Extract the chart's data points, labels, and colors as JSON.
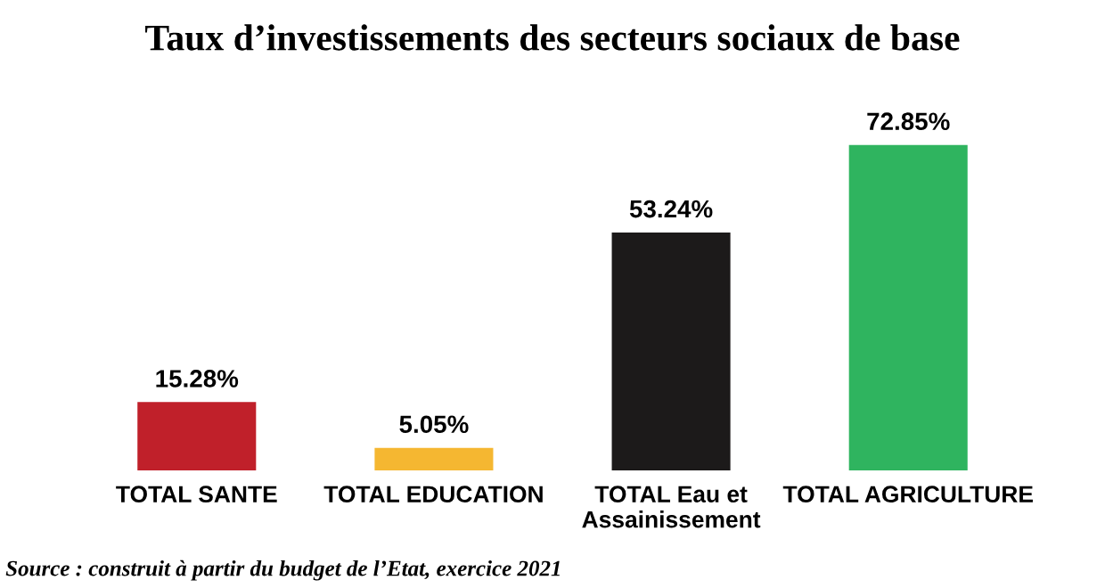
{
  "chart_data": {
    "type": "bar",
    "title": "Taux d’investissements des secteurs sociaux de base",
    "categories": [
      "TOTAL SANTE",
      "TOTAL EDUCATION",
      "TOTAL Eau et\nAssainissement",
      "TOTAL AGRICULTURE"
    ],
    "values": [
      15.28,
      5.05,
      53.24,
      72.85
    ],
    "colors": [
      "#c0202a",
      "#f5b731",
      "#1c1a1a",
      "#2fb45f"
    ],
    "value_labels": [
      "15.28%",
      "5.05%",
      "53.24%",
      "72.85%"
    ],
    "annotations": [
      "Source : construit à partir du budget de l’Etat, exercice 2021"
    ]
  }
}
